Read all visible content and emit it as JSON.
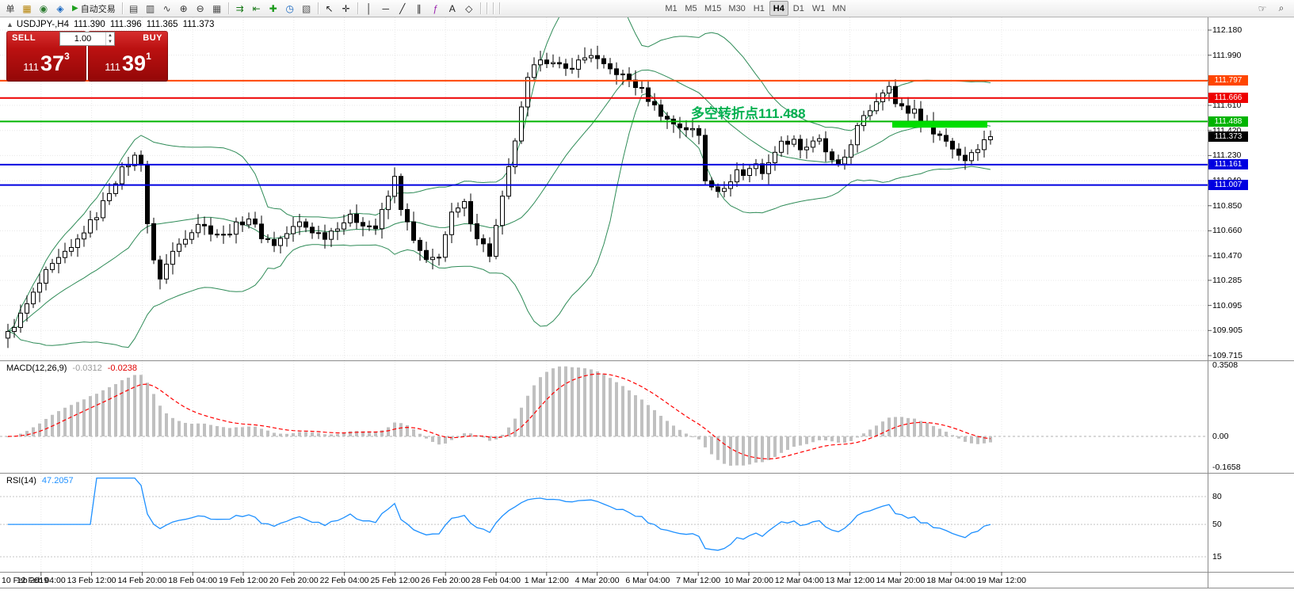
{
  "toolbar": {
    "items": [
      {
        "type": "text",
        "label": "单",
        "name": "new-order-button"
      },
      {
        "type": "icon",
        "glyph": "▦",
        "name": "chart-window-icon",
        "color": "#b8860b"
      },
      {
        "type": "icon",
        "glyph": "◉",
        "name": "market-watch-icon",
        "color": "#2e7d32"
      },
      {
        "type": "icon",
        "glyph": "◈",
        "name": "navigator-icon",
        "color": "#1565c0"
      },
      {
        "type": "button",
        "glyph": "▶",
        "label": "自动交易",
        "name": "autotrading-button"
      },
      {
        "type": "sep"
      },
      {
        "type": "icon",
        "glyph": "▤",
        "name": "bar-chart-icon",
        "color": "#444444"
      },
      {
        "type": "icon",
        "glyph": "▥",
        "name": "candlestick-chart-icon",
        "color": "#444444"
      },
      {
        "type": "icon",
        "glyph": "∿",
        "name": "line-chart-icon",
        "color": "#444444"
      },
      {
        "type": "icon",
        "glyph": "⊕",
        "name": "zoom-in-icon",
        "color": "#333333"
      },
      {
        "type": "icon",
        "glyph": "⊖",
        "name": "zoom-out-icon",
        "color": "#333333"
      },
      {
        "type": "icon",
        "glyph": "▦",
        "name": "tile-windows-icon",
        "color": "#555555"
      },
      {
        "type": "sep"
      },
      {
        "type": "icon",
        "glyph": "⇉",
        "name": "auto-scroll-icon",
        "color": "#1a7a1a"
      },
      {
        "type": "icon",
        "glyph": "⇤",
        "name": "chart-shift-icon",
        "color": "#1a7a1a"
      },
      {
        "type": "icon",
        "glyph": "✚",
        "name": "new-chart-icon",
        "color": "#1a9a1a"
      },
      {
        "type": "icon",
        "glyph": "◷",
        "name": "period-icon",
        "color": "#1565c0"
      },
      {
        "type": "icon",
        "glyph": "▧",
        "name": "templates-icon",
        "color": "#555555"
      },
      {
        "type": "sep"
      },
      {
        "type": "icon",
        "glyph": "↖",
        "name": "cursor-icon",
        "color": "#222222"
      },
      {
        "type": "icon",
        "glyph": "✛",
        "name": "crosshair-icon",
        "color": "#222222"
      },
      {
        "type": "sep"
      },
      {
        "type": "icon",
        "glyph": "│",
        "name": "vertical-line-icon",
        "color": "#222222"
      },
      {
        "type": "icon",
        "glyph": "─",
        "name": "horizontal-line-icon",
        "color": "#222222"
      },
      {
        "type": "icon",
        "glyph": "╱",
        "name": "trendline-icon",
        "color": "#222222"
      },
      {
        "type": "icon",
        "glyph": "∥",
        "name": "equidistant-channel-icon",
        "color": "#222222"
      },
      {
        "type": "icon",
        "glyph": "ƒ",
        "name": "fibonacci-icon",
        "color": "#9c27b0"
      },
      {
        "type": "icon",
        "glyph": "A",
        "name": "text-label-icon",
        "color": "#222222"
      },
      {
        "type": "icon",
        "glyph": "◇",
        "name": "shapes-icon",
        "color": "#222222"
      }
    ],
    "timeframes": [
      {
        "label": "M1"
      },
      {
        "label": "M5"
      },
      {
        "label": "M15"
      },
      {
        "label": "M30"
      },
      {
        "label": "H1"
      },
      {
        "label": "H4",
        "active": true
      },
      {
        "label": "D1"
      },
      {
        "label": "W1"
      },
      {
        "label": "MN"
      }
    ],
    "right_icons": [
      {
        "glyph": "☞",
        "name": "hand-cursor-icon"
      },
      {
        "glyph": "⌕",
        "name": "magnifier-icon"
      }
    ]
  },
  "chart": {
    "symbol_period": "USDJPY-,H4",
    "ohlc": {
      "open": "111.390",
      "high": "111.396",
      "low": "111.365",
      "close": "111.373"
    },
    "annotation": {
      "text": "多空转折点111.488"
    },
    "trade_panel": {
      "sell_label": "SELL",
      "buy_label": "BUY",
      "volume": "1.00",
      "sell_price": {
        "prefix": "111",
        "big": "37",
        "sup": "3"
      },
      "buy_price": {
        "prefix": "111",
        "big": "39",
        "sup": "1"
      }
    },
    "price_axis": {
      "ticks": [
        "112.180",
        "111.990",
        "111.800",
        "111.610",
        "111.420",
        "111.230",
        "111.040",
        "110.850",
        "110.660",
        "110.470",
        "110.285",
        "110.095",
        "109.905",
        "109.715"
      ],
      "badges": [
        {
          "label": "111.797",
          "price": 111.797,
          "color": "#ff4500"
        },
        {
          "label": "111.666",
          "price": 111.666,
          "color": "#ee0000"
        },
        {
          "label": "111.488",
          "price": 111.488,
          "color": "#00b400"
        },
        {
          "label": "111.161",
          "price": 111.161,
          "color": "#0000e0"
        },
        {
          "label": "111.007",
          "price": 111.007,
          "color": "#0000e0"
        }
      ],
      "current": {
        "label": "111.373",
        "price": 111.373,
        "color": "#000000"
      }
    }
  },
  "indicators": {
    "macd": {
      "title": "MACD(12,26,9)",
      "value1": "-0.0312",
      "value2": "-0.0238",
      "scale": [
        "0.3508",
        "0.00",
        "-0.1658"
      ]
    },
    "rsi": {
      "title": "RSI(14)",
      "value": "47.2057",
      "levels": [
        "80",
        "50",
        "15"
      ]
    }
  },
  "time_axis": {
    "labels": [
      "10 Feb 2019",
      "12 Feb 04:00",
      "13 Feb 12:00",
      "14 Feb 20:00",
      "18 Feb 04:00",
      "19 Feb 12:00",
      "20 Feb 20:00",
      "22 Feb 04:00",
      "25 Feb 12:00",
      "26 Feb 20:00",
      "28 Feb 04:00",
      "1 Mar 12:00",
      "4 Mar 20:00",
      "6 Mar 04:00",
      "7 Mar 12:00",
      "10 Mar 20:00",
      "12 Mar 04:00",
      "13 Mar 12:00",
      "14 Mar 20:00",
      "18 Mar 04:00",
      "19 Mar 12:00"
    ]
  },
  "colors": {
    "candle_up": "#ffffff",
    "candle_down": "#000000",
    "candle_border": "#000000",
    "bollinger": "#2e8b57",
    "grid": "#e8e8e8",
    "macd_histogram": "#c0c0c0",
    "macd_signal": "#ff0000",
    "rsi_line": "#1e90ff",
    "annotation": "#00b050",
    "highlight_bar": "#00dd00",
    "trade_panel": "#bb1111"
  },
  "chart_data": {
    "type": "candlestick",
    "symbol": "USDJPY",
    "timeframe": "H4",
    "y_axis_range": [
      109.715,
      112.18
    ],
    "candle_count": 156,
    "close_anchors": [
      [
        0,
        109.88
      ],
      [
        2,
        110.02
      ],
      [
        4,
        110.18
      ],
      [
        6,
        110.34
      ],
      [
        8,
        110.44
      ],
      [
        10,
        110.52
      ],
      [
        12,
        110.66
      ],
      [
        14,
        110.78
      ],
      [
        16,
        110.96
      ],
      [
        18,
        111.12
      ],
      [
        20,
        111.22
      ],
      [
        21,
        111.18
      ],
      [
        22,
        110.72
      ],
      [
        23,
        110.42
      ],
      [
        24,
        110.31
      ],
      [
        26,
        110.5
      ],
      [
        28,
        110.62
      ],
      [
        30,
        110.72
      ],
      [
        32,
        110.66
      ],
      [
        34,
        110.62
      ],
      [
        36,
        110.7
      ],
      [
        38,
        110.76
      ],
      [
        40,
        110.62
      ],
      [
        42,
        110.56
      ],
      [
        44,
        110.64
      ],
      [
        46,
        110.72
      ],
      [
        48,
        110.66
      ],
      [
        50,
        110.62
      ],
      [
        52,
        110.7
      ],
      [
        54,
        110.76
      ],
      [
        56,
        110.72
      ],
      [
        58,
        110.68
      ],
      [
        60,
        110.92
      ],
      [
        61,
        111.06
      ],
      [
        62,
        110.84
      ],
      [
        64,
        110.58
      ],
      [
        66,
        110.42
      ],
      [
        68,
        110.48
      ],
      [
        70,
        110.78
      ],
      [
        72,
        110.86
      ],
      [
        74,
        110.62
      ],
      [
        76,
        110.48
      ],
      [
        78,
        110.9
      ],
      [
        80,
        111.35
      ],
      [
        82,
        111.8
      ],
      [
        84,
        111.98
      ],
      [
        86,
        111.92
      ],
      [
        88,
        111.88
      ],
      [
        90,
        111.94
      ],
      [
        92,
        112.0
      ],
      [
        94,
        111.9
      ],
      [
        96,
        111.86
      ],
      [
        98,
        111.8
      ],
      [
        100,
        111.72
      ],
      [
        102,
        111.6
      ],
      [
        104,
        111.5
      ],
      [
        106,
        111.45
      ],
      [
        108,
        111.42
      ],
      [
        109,
        111.38
      ],
      [
        110,
        111.05
      ],
      [
        112,
        110.98
      ],
      [
        113,
        110.96
      ],
      [
        114,
        111.05
      ],
      [
        115,
        111.12
      ],
      [
        116,
        111.08
      ],
      [
        118,
        111.18
      ],
      [
        119,
        111.1
      ],
      [
        120,
        111.16
      ],
      [
        121,
        111.28
      ],
      [
        122,
        111.32
      ],
      [
        124,
        111.36
      ],
      [
        125,
        111.28
      ],
      [
        126,
        111.3
      ],
      [
        128,
        111.34
      ],
      [
        130,
        111.18
      ],
      [
        131,
        111.14
      ],
      [
        132,
        111.22
      ],
      [
        134,
        111.44
      ],
      [
        136,
        111.58
      ],
      [
        138,
        111.72
      ],
      [
        139,
        111.78
      ],
      [
        140,
        111.62
      ],
      [
        142,
        111.56
      ],
      [
        143,
        111.58
      ],
      [
        144,
        111.5
      ],
      [
        145,
        111.46
      ],
      [
        146,
        111.42
      ],
      [
        148,
        111.34
      ],
      [
        150,
        111.24
      ],
      [
        151,
        111.2
      ],
      [
        152,
        111.26
      ],
      [
        153,
        111.3
      ],
      [
        154,
        111.34
      ],
      [
        155,
        111.373
      ]
    ],
    "indicators": {
      "bollinger": {
        "period": 20,
        "deviation": 2
      },
      "macd": {
        "fast": 12,
        "slow": 26,
        "signal": 9,
        "last_values": [
          -0.0312,
          -0.0238
        ],
        "scale_max": 0.3508,
        "scale_min": -0.1658
      },
      "rsi": {
        "period": 14,
        "last_value": 47.2057,
        "levels": [
          80,
          50,
          15
        ]
      }
    },
    "price_levels": [
      {
        "price": 111.797,
        "color": "#ff4500"
      },
      {
        "price": 111.666,
        "color": "#ee0000"
      },
      {
        "price": 111.488,
        "color": "#00b400"
      },
      {
        "price": 111.161,
        "color": "#0000e0"
      },
      {
        "price": 111.007,
        "color": "#0000e0"
      }
    ],
    "highlight_bar": {
      "price": 111.465,
      "from_index": 140,
      "to_index": 154
    }
  }
}
